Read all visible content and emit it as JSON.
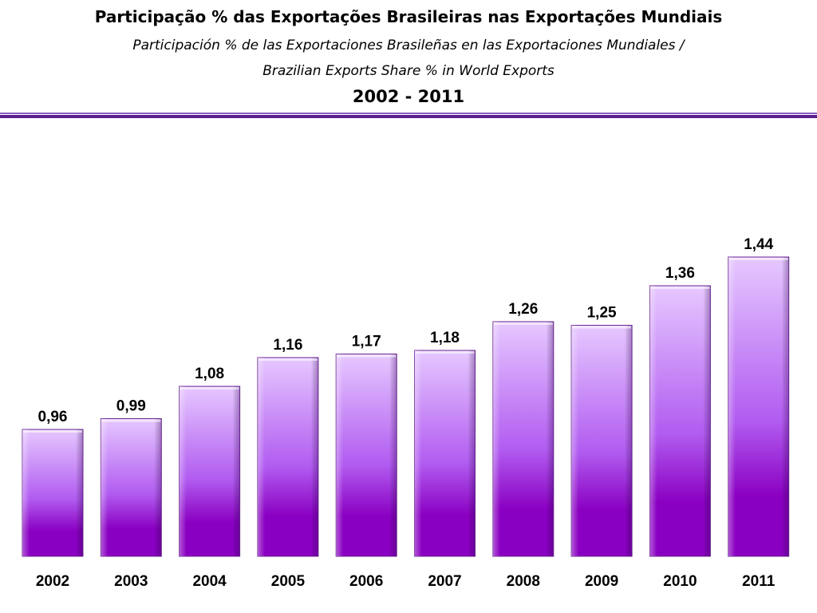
{
  "header": {
    "title": "Participação % das Exportações Brasileiras nas Exportações Mundiais",
    "subtitle_line1": "Participación % de las Exportaciones Brasileñas en las Exportaciones Mundiales /",
    "subtitle_line2": "Brazilian Exports Share % in  World Exports",
    "period": "2002 - 2011"
  },
  "colors": {
    "accent": "#5a1f8f",
    "accent_light": "#8a5cc0",
    "bar_top": "#e6c8ff",
    "bar_mid": "#b15bf0",
    "bar_bottom": "#8a00c2"
  },
  "chart_data": {
    "type": "bar",
    "title": "Participação % das Exportações Brasileiras nas Exportações Mundiais",
    "xlabel": "",
    "ylabel": "",
    "categories": [
      "2002",
      "2003",
      "2004",
      "2005",
      "2006",
      "2007",
      "2008",
      "2009",
      "2010",
      "2011"
    ],
    "values": [
      0.96,
      0.99,
      1.08,
      1.16,
      1.17,
      1.18,
      1.26,
      1.25,
      1.36,
      1.44
    ],
    "value_labels": [
      "0,96",
      "0,99",
      "1,08",
      "1,16",
      "1,17",
      "1,18",
      "1,26",
      "1,25",
      "1,36",
      "1,44"
    ],
    "grid": false,
    "legend": "none"
  }
}
